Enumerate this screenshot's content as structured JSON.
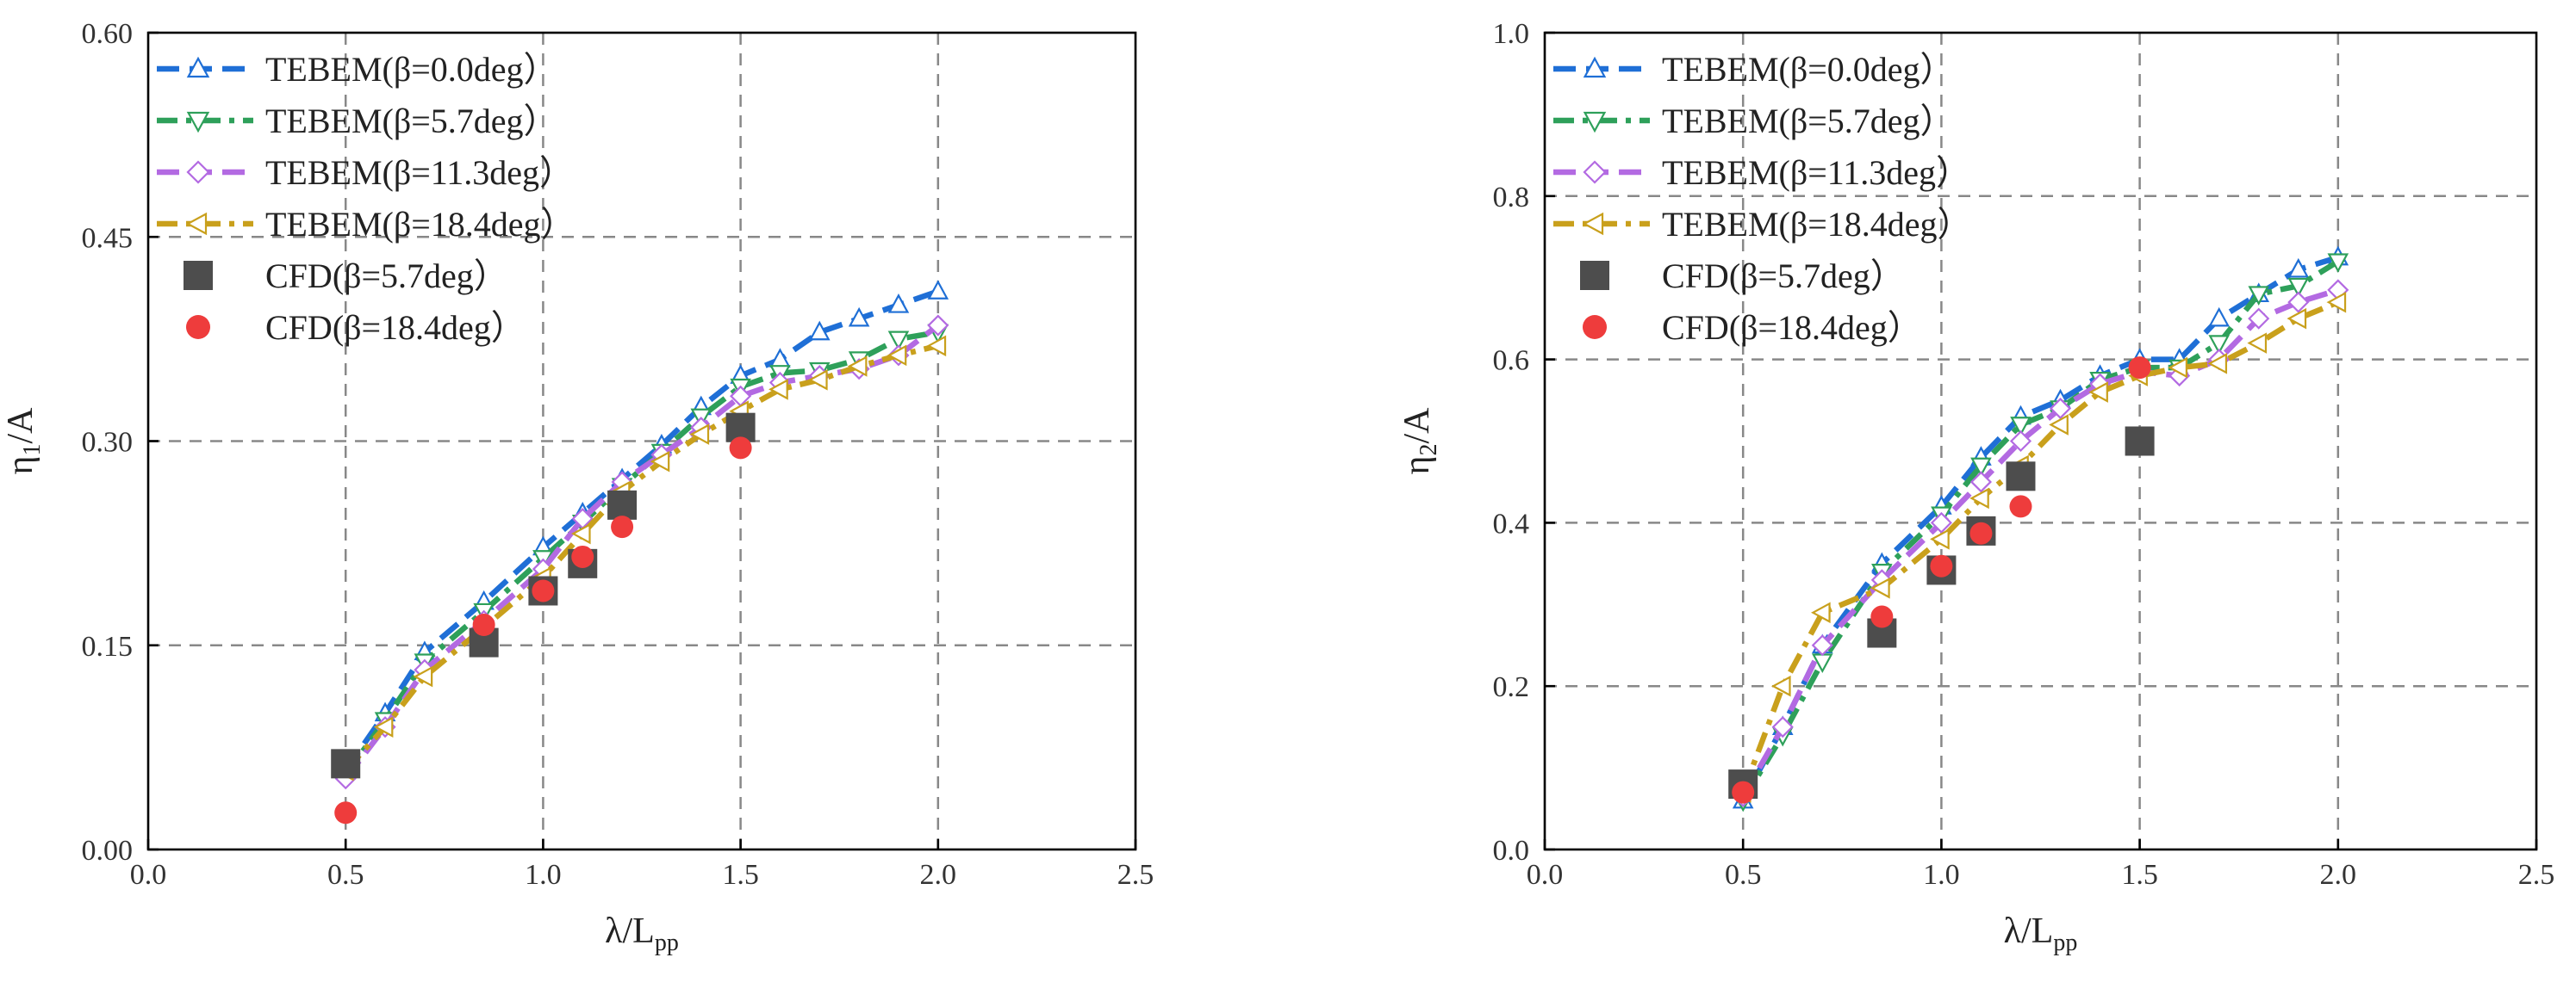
{
  "chart_data": [
    {
      "type": "line",
      "xlabel": "λ/L",
      "xlabel_sub": "pp",
      "ylabel": "η",
      "ylabel_sub": "1",
      "ylabel_suffix": "/A",
      "xlim": [
        0.0,
        2.5
      ],
      "ylim": [
        0.0,
        0.6
      ],
      "xticks": [
        0.0,
        0.5,
        1.0,
        1.5,
        2.0,
        2.5
      ],
      "yticks": [
        0.0,
        0.15,
        0.3,
        0.45,
        0.6
      ],
      "xtick_labels": [
        "0.0",
        "0.5",
        "1.0",
        "1.5",
        "2.0",
        "2.5"
      ],
      "ytick_labels": [
        "0.00",
        "0.15",
        "0.30",
        "0.45",
        "0.60"
      ],
      "grid": true,
      "legend_position": "top-left",
      "series": [
        {
          "name": "TEBEM(β=0.0deg）",
          "kind": "line",
          "marker": "triangle-up",
          "color": "#1f6fd6",
          "dash": "dash",
          "x": [
            0.5,
            0.6,
            0.7,
            0.85,
            1.0,
            1.1,
            1.2,
            1.3,
            1.4,
            1.5,
            1.6,
            1.7,
            1.8,
            1.9,
            2.0
          ],
          "y": [
            0.058,
            0.1,
            0.145,
            0.182,
            0.222,
            0.247,
            0.272,
            0.297,
            0.325,
            0.348,
            0.36,
            0.38,
            0.39,
            0.4,
            0.41
          ]
        },
        {
          "name": "TEBEM(β=5.7deg）",
          "kind": "line",
          "marker": "triangle-down",
          "color": "#2ea05a",
          "dash": "dashdot",
          "x": [
            0.5,
            0.6,
            0.7,
            0.85,
            1.0,
            1.1,
            1.2,
            1.3,
            1.4,
            1.5,
            1.6,
            1.7,
            1.8,
            1.9,
            2.0
          ],
          "y": [
            0.055,
            0.095,
            0.138,
            0.175,
            0.214,
            0.24,
            0.267,
            0.292,
            0.318,
            0.34,
            0.35,
            0.352,
            0.36,
            0.375,
            0.38
          ]
        },
        {
          "name": "TEBEM(β=11.3deg）",
          "kind": "line",
          "marker": "diamond",
          "color": "#b36ae2",
          "dash": "dash",
          "x": [
            0.5,
            0.6,
            0.7,
            0.85,
            1.0,
            1.1,
            1.2,
            1.3,
            1.4,
            1.5,
            1.6,
            1.7,
            1.8,
            1.9,
            2.0
          ],
          "y": [
            0.052,
            0.09,
            0.132,
            0.168,
            0.206,
            0.243,
            0.27,
            0.29,
            0.31,
            0.333,
            0.343,
            0.348,
            0.353,
            0.363,
            0.385
          ]
        },
        {
          "name": "TEBEM(β=18.4deg）",
          "kind": "line",
          "marker": "triangle-left",
          "color": "#c9a01c",
          "dash": "dashdot",
          "x": [
            0.5,
            0.6,
            0.7,
            0.85,
            1.0,
            1.1,
            1.2,
            1.3,
            1.4,
            1.5,
            1.6,
            1.7,
            1.8,
            1.9,
            2.0
          ],
          "y": [
            0.058,
            0.09,
            0.127,
            0.163,
            0.2,
            0.232,
            0.263,
            0.285,
            0.305,
            0.322,
            0.338,
            0.345,
            0.355,
            0.363,
            0.37
          ]
        },
        {
          "name": "CFD(β=5.7deg）",
          "kind": "scatter",
          "marker": "square",
          "color": "#4d4d4d",
          "x": [
            0.5,
            0.85,
            1.0,
            1.1,
            1.2,
            1.5
          ],
          "y": [
            0.063,
            0.152,
            0.19,
            0.21,
            0.253,
            0.31
          ]
        },
        {
          "name": "CFD(β=18.4deg）",
          "kind": "scatter",
          "marker": "circle",
          "color": "#ee3c3c",
          "x": [
            0.5,
            0.85,
            1.0,
            1.1,
            1.2,
            1.5
          ],
          "y": [
            0.027,
            0.165,
            0.19,
            0.215,
            0.237,
            0.295
          ]
        }
      ]
    },
    {
      "type": "line",
      "xlabel": "λ/L",
      "xlabel_sub": "pp",
      "ylabel": "η",
      "ylabel_sub": "2",
      "ylabel_suffix": "/A",
      "xlim": [
        0.0,
        2.5
      ],
      "ylim": [
        0.0,
        1.0
      ],
      "xticks": [
        0.0,
        0.5,
        1.0,
        1.5,
        2.0,
        2.5
      ],
      "yticks": [
        0.0,
        0.2,
        0.4,
        0.6,
        0.8,
        1.0
      ],
      "xtick_labels": [
        "0.0",
        "0.5",
        "1.0",
        "1.5",
        "2.0",
        "2.5"
      ],
      "ytick_labels": [
        "0.0",
        "0.2",
        "0.4",
        "0.6",
        "0.8",
        "1.0"
      ],
      "grid": true,
      "legend_position": "top-left",
      "series": [
        {
          "name": "TEBEM(β=0.0deg）",
          "kind": "line",
          "marker": "triangle-up",
          "color": "#1f6fd6",
          "dash": "dash",
          "x": [
            0.5,
            0.6,
            0.7,
            0.85,
            1.0,
            1.1,
            1.2,
            1.3,
            1.4,
            1.5,
            1.6,
            1.7,
            1.8,
            1.9,
            2.0
          ],
          "y": [
            0.06,
            0.15,
            0.25,
            0.35,
            0.42,
            0.48,
            0.53,
            0.55,
            0.58,
            0.6,
            0.6,
            0.65,
            0.68,
            0.71,
            0.725
          ]
        },
        {
          "name": "TEBEM(β=5.7deg）",
          "kind": "line",
          "marker": "triangle-down",
          "color": "#2ea05a",
          "dash": "dashdot",
          "x": [
            0.5,
            0.6,
            0.7,
            0.85,
            1.0,
            1.1,
            1.2,
            1.3,
            1.4,
            1.5,
            1.6,
            1.7,
            1.8,
            1.9,
            2.0
          ],
          "y": [
            0.06,
            0.14,
            0.23,
            0.34,
            0.41,
            0.47,
            0.52,
            0.54,
            0.575,
            0.59,
            0.59,
            0.62,
            0.68,
            0.69,
            0.72
          ]
        },
        {
          "name": "TEBEM(β=11.3deg）",
          "kind": "line",
          "marker": "diamond",
          "color": "#b36ae2",
          "dash": "dash",
          "x": [
            0.5,
            0.6,
            0.7,
            0.85,
            1.0,
            1.1,
            1.2,
            1.3,
            1.4,
            1.5,
            1.6,
            1.7,
            1.8,
            1.9,
            2.0
          ],
          "y": [
            0.065,
            0.15,
            0.25,
            0.33,
            0.4,
            0.45,
            0.5,
            0.54,
            0.57,
            0.585,
            0.58,
            0.6,
            0.65,
            0.67,
            0.685
          ]
        },
        {
          "name": "TEBEM(β=18.4deg）",
          "kind": "line",
          "marker": "triangle-left",
          "color": "#c9a01c",
          "dash": "dashdot",
          "x": [
            0.5,
            0.6,
            0.7,
            0.85,
            1.0,
            1.1,
            1.2,
            1.3,
            1.4,
            1.5,
            1.6,
            1.7,
            1.8,
            1.9,
            2.0
          ],
          "y": [
            0.07,
            0.2,
            0.29,
            0.32,
            0.38,
            0.43,
            0.47,
            0.52,
            0.56,
            0.58,
            0.59,
            0.595,
            0.62,
            0.65,
            0.67
          ]
        },
        {
          "name": "CFD(β=5.7deg）",
          "kind": "scatter",
          "marker": "square",
          "color": "#4d4d4d",
          "x": [
            0.5,
            0.85,
            1.0,
            1.1,
            1.2,
            1.5
          ],
          "y": [
            0.08,
            0.265,
            0.342,
            0.39,
            0.457,
            0.5
          ]
        },
        {
          "name": "CFD(β=18.4deg）",
          "kind": "scatter",
          "marker": "circle",
          "color": "#ee3c3c",
          "x": [
            0.5,
            0.85,
            1.0,
            1.1,
            1.2,
            1.5
          ],
          "y": [
            0.07,
            0.285,
            0.347,
            0.387,
            0.42,
            0.59
          ]
        }
      ]
    }
  ]
}
